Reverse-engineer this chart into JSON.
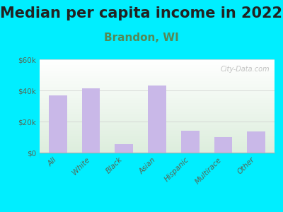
{
  "title": "Median per capita income in 2022",
  "subtitle": "Brandon, WI",
  "categories": [
    "All",
    "White",
    "Black",
    "Asian",
    "Hispanic",
    "Multirace",
    "Other"
  ],
  "values": [
    37000,
    41500,
    5500,
    43000,
    14000,
    10000,
    13500
  ],
  "bar_color": "#c9b8e8",
  "ylim": [
    0,
    60000
  ],
  "yticks": [
    0,
    20000,
    40000,
    60000
  ],
  "ytick_labels": [
    "$0",
    "$20k",
    "$40k",
    "$60k"
  ],
  "background_color": "#00eeff",
  "plot_bg_top": "#ffffff",
  "plot_bg_bottom": "#ddeedd",
  "title_fontsize": 15,
  "subtitle_fontsize": 11,
  "title_color": "#222222",
  "subtitle_color": "#558855",
  "watermark": "City-Data.com",
  "tick_label_color": "#556655"
}
